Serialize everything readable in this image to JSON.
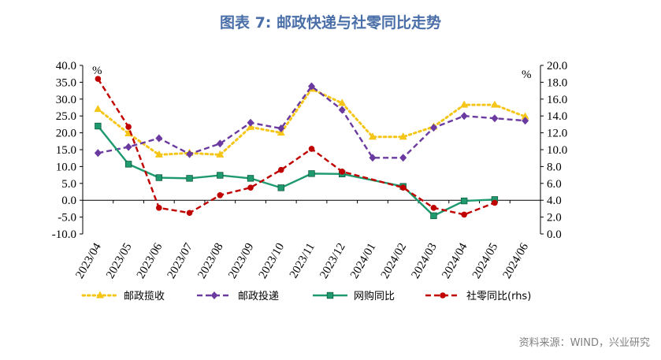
{
  "title": "图表 7:  邮政快递与社零同比走势",
  "source": "资料来源：WIND，兴业研究",
  "chart_data": {
    "type": "line",
    "categories": [
      "2023/04",
      "2023/05",
      "2023/06",
      "2023/07",
      "2023/08",
      "2023/09",
      "2023/10",
      "2023/11",
      "2023/12",
      "2024/01",
      "2024/02",
      "2024/03",
      "2024/04",
      "2024/05",
      "2024/06"
    ],
    "y_left": {
      "unit": "%",
      "ylim": [
        -10,
        40
      ],
      "ticks": [
        "40.0",
        "35.0",
        "30.0",
        "25.0",
        "20.0",
        "15.0",
        "10.0",
        "5.0",
        "0.0",
        "-5.0",
        "-10.0"
      ]
    },
    "y_right": {
      "unit": "%",
      "ylim": [
        0,
        20
      ],
      "ticks": [
        "20.0",
        "18.0",
        "16.0",
        "14.0",
        "12.0",
        "10.0",
        "8.0",
        "6.0",
        "4.0",
        "2.0",
        "0.0"
      ]
    },
    "grid": false,
    "legend_position": "bottom",
    "series": [
      {
        "name": "邮政揽收",
        "axis": "left",
        "color": "#f5c518",
        "dash": "dot",
        "marker": "triangle",
        "values": [
          27.0,
          19.8,
          13.5,
          14.0,
          13.5,
          21.7,
          20.0,
          33.0,
          28.8,
          18.8,
          18.8,
          21.8,
          28.3,
          28.3,
          24.8
        ]
      },
      {
        "name": "邮政投递",
        "axis": "left",
        "color": "#6b3aa0",
        "dash": "dash",
        "marker": "diamond",
        "values": [
          14.0,
          15.8,
          18.4,
          13.7,
          16.8,
          23.0,
          21.3,
          33.8,
          26.8,
          12.6,
          12.6,
          21.5,
          25.0,
          24.3,
          23.6
        ]
      },
      {
        "name": "网购同比",
        "axis": "left",
        "color": "#1e9a6e",
        "dash": "solid",
        "marker": "square",
        "values": [
          22.0,
          10.7,
          6.7,
          6.5,
          7.4,
          6.5,
          3.7,
          7.9,
          7.8,
          null,
          4.1,
          -4.6,
          -0.2,
          0.2,
          null
        ]
      },
      {
        "name": "社零同比(rhs)",
        "axis": "right",
        "color": "#c00000",
        "dash": "dash",
        "marker": "circle",
        "values": [
          18.4,
          12.7,
          3.1,
          2.5,
          4.6,
          5.5,
          7.6,
          10.1,
          7.4,
          null,
          5.5,
          3.1,
          2.3,
          3.7,
          null
        ]
      }
    ]
  }
}
